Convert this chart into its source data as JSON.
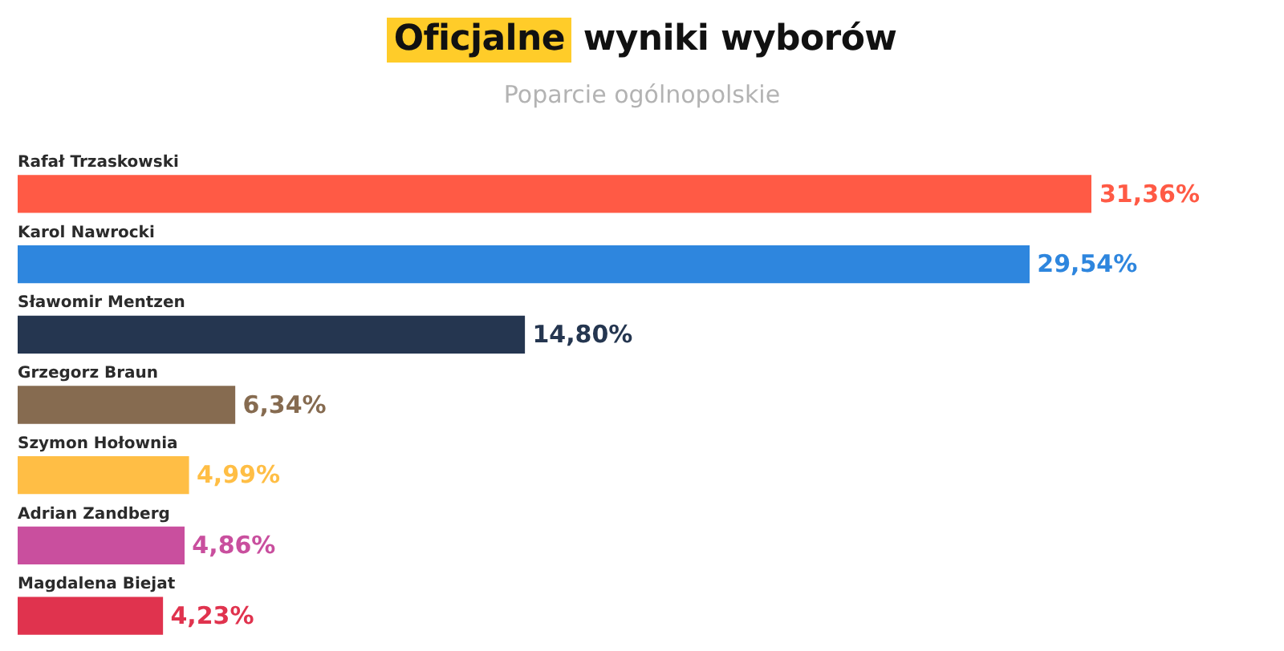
{
  "chart_data": {
    "type": "bar",
    "orientation": "horizontal",
    "title": "Oficjalne wyniki wyborów",
    "subtitle": "Poparcie ogólnopolskie",
    "categories": [
      "Rafał Trzaskowski",
      "Karol Nawrocki",
      "Sławomir Mentzen",
      "Grzegorz Braun",
      "Szymon Hołownia",
      "Adrian Zandberg",
      "Magdalena Biejat"
    ],
    "values": [
      31.36,
      29.54,
      14.8,
      6.34,
      4.99,
      4.86,
      4.23
    ],
    "colors": [
      "#ff5a45",
      "#2e86de",
      "#253650",
      "#866b50",
      "#ffbe45",
      "#c94f9e",
      "#e0334e"
    ],
    "value_labels": [
      "31,36%",
      "29,54%",
      "14,80%",
      "6,34%",
      "4,99%",
      "4,86%",
      "4,23%"
    ]
  }
}
